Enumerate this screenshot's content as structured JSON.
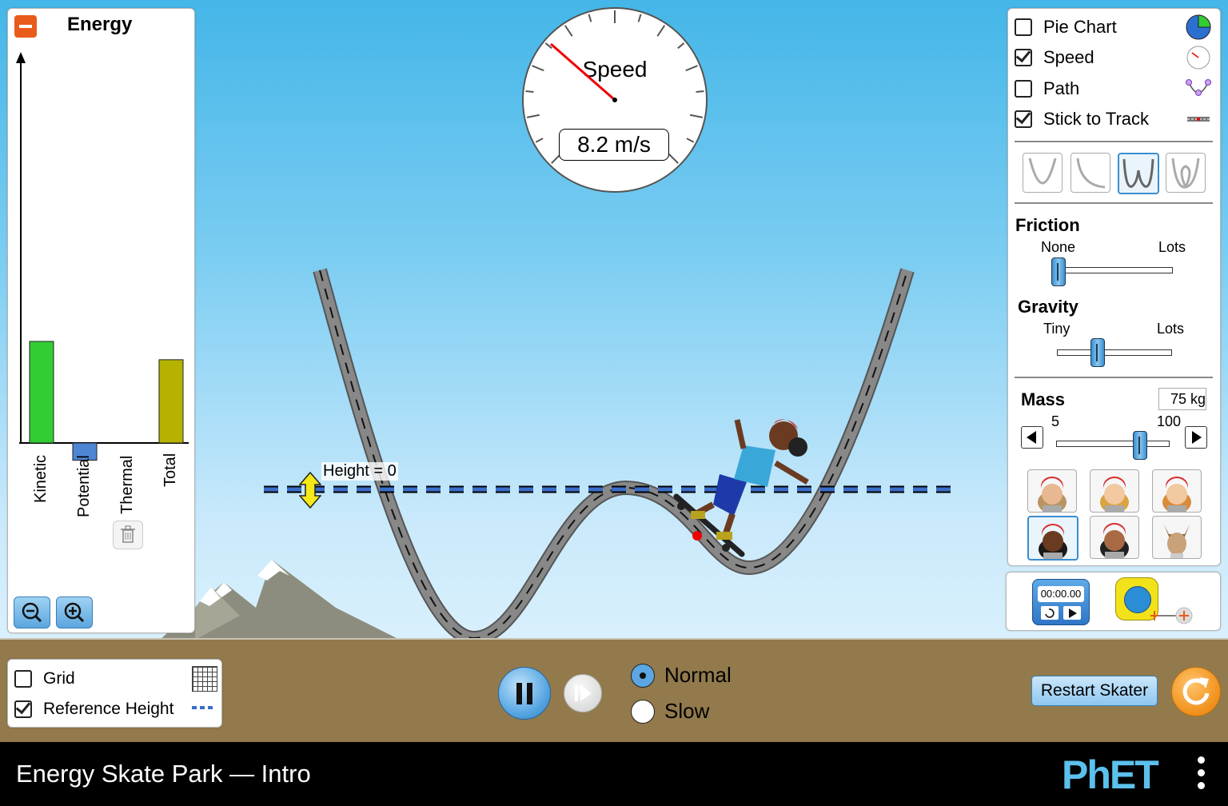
{
  "app": {
    "title": "Energy Skate Park — Intro",
    "logo_text": "PhET"
  },
  "energy_panel": {
    "title": "Energy",
    "bars": [
      {
        "label": "Kinetic",
        "value": 1.0,
        "color": "#33cc33"
      },
      {
        "label": "Potential",
        "value": -0.17,
        "color": "#4f86d4"
      },
      {
        "label": "Thermal",
        "value": 0.0,
        "color": "#e85b1a"
      },
      {
        "label": "Total",
        "value": 0.82,
        "color": "#b5b300"
      }
    ]
  },
  "speedometer": {
    "label": "Speed",
    "readout": "8.2 m/s"
  },
  "reference_line": {
    "label": "Height = 0"
  },
  "controls": {
    "checkboxes": [
      {
        "label": "Pie Chart",
        "checked": false,
        "icon": "pie-chart-icon"
      },
      {
        "label": "Speed",
        "checked": true,
        "icon": "speedometer-icon"
      },
      {
        "label": "Path",
        "checked": false,
        "icon": "path-icon"
      },
      {
        "label": "Stick to Track",
        "checked": true,
        "icon": "track-icon"
      }
    ],
    "tracks": [
      "parabola-track",
      "slope-track",
      "double-well-track",
      "loop-track"
    ],
    "selected_track": 2,
    "friction": {
      "title": "Friction",
      "min_label": "None",
      "max_label": "Lots",
      "level": 0.0
    },
    "gravity": {
      "title": "Gravity",
      "min_label": "Tiny",
      "max_label": "Lots",
      "level": 0.35
    },
    "mass": {
      "title": "Mass",
      "value_text": "75 kg",
      "min_label": "5",
      "max_label": "100",
      "level": 0.74
    },
    "skaters": [
      "skater-1",
      "skater-2",
      "skater-3",
      "skater-4",
      "skater-5",
      "skater-dog"
    ],
    "selected_skater": 3
  },
  "tools": {
    "stopwatch_time": "00:00.00"
  },
  "view_options": [
    {
      "label": "Grid",
      "checked": false
    },
    {
      "label": "Reference Height",
      "checked": true
    }
  ],
  "playback": {
    "speeds": [
      {
        "label": "Normal",
        "selected": true
      },
      {
        "label": "Slow",
        "selected": false
      }
    ],
    "restart_label": "Restart Skater"
  }
}
